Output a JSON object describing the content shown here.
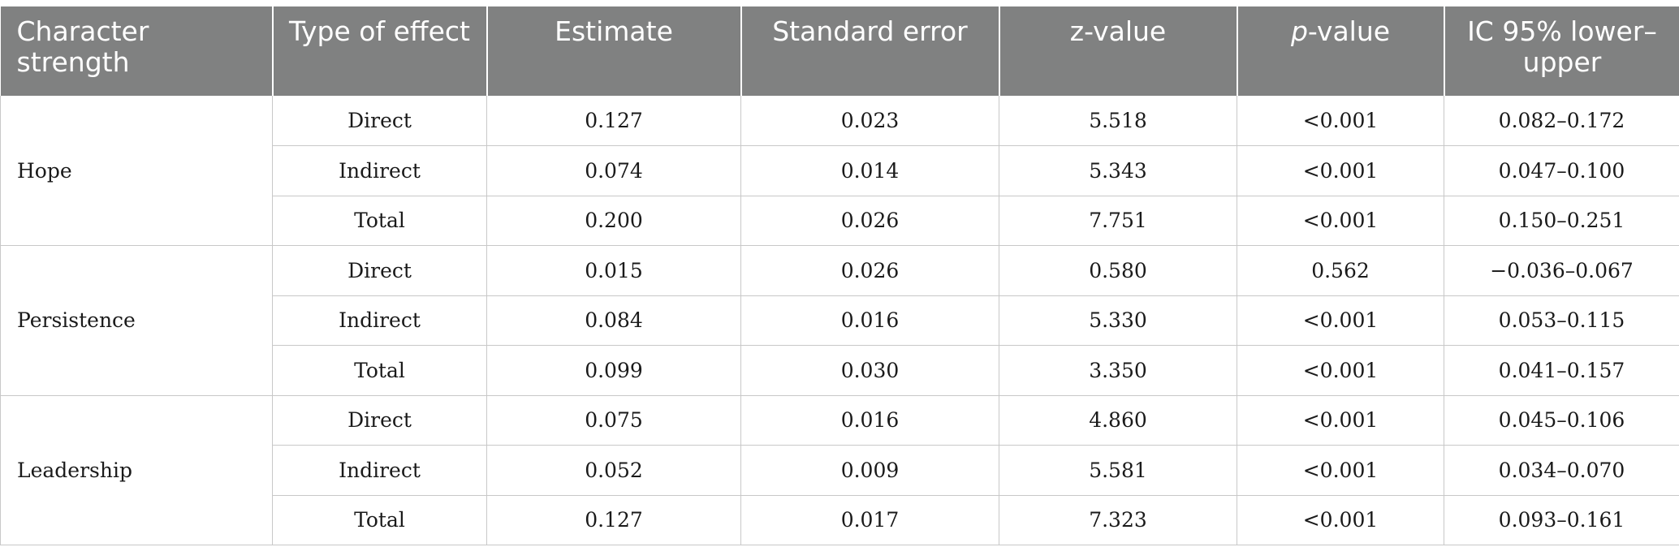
{
  "table": {
    "headers": [
      "Character strength",
      "Type of effect",
      "Estimate",
      "Standard error",
      "z-value",
      "p-value",
      "IC 95% lower–upper"
    ],
    "header_p_italic": "p",
    "header_p_rest": "-value",
    "groups": [
      {
        "strength": "Hope",
        "rows": [
          {
            "type": "Direct",
            "estimate": "0.127",
            "se": "0.023",
            "z": "5.518",
            "p": "<0.001",
            "ci": "0.082–0.172"
          },
          {
            "type": "Indirect",
            "estimate": "0.074",
            "se": "0.014",
            "z": "5.343",
            "p": "<0.001",
            "ci": "0.047–0.100"
          },
          {
            "type": "Total",
            "estimate": "0.200",
            "se": "0.026",
            "z": "7.751",
            "p": "<0.001",
            "ci": "0.150–0.251"
          }
        ]
      },
      {
        "strength": "Persistence",
        "rows": [
          {
            "type": "Direct",
            "estimate": "0.015",
            "se": "0.026",
            "z": "0.580",
            "p": "0.562",
            "ci": "−0.036–0.067"
          },
          {
            "type": "Indirect",
            "estimate": "0.084",
            "se": "0.016",
            "z": "5.330",
            "p": "<0.001",
            "ci": "0.053–0.115"
          },
          {
            "type": "Total",
            "estimate": "0.099",
            "se": "0.030",
            "z": "3.350",
            "p": "<0.001",
            "ci": "0.041–0.157"
          }
        ]
      },
      {
        "strength": "Leadership",
        "rows": [
          {
            "type": "Direct",
            "estimate": "0.075",
            "se": "0.016",
            "z": "4.860",
            "p": "<0.001",
            "ci": "0.045–0.106"
          },
          {
            "type": "Indirect",
            "estimate": "0.052",
            "se": "0.009",
            "z": "5.581",
            "p": "<0.001",
            "ci": "0.034–0.070"
          },
          {
            "type": "Total",
            "estimate": "0.127",
            "se": "0.017",
            "z": "7.323",
            "p": "<0.001",
            "ci": "0.093–0.161"
          }
        ]
      }
    ],
    "colors": {
      "header_bg": "#808181",
      "header_text": "#ffffff",
      "grid": "#c8c8c8"
    }
  }
}
